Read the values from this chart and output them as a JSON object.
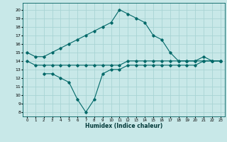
{
  "title": "",
  "xlabel": "Humidex (Indice chaleur)",
  "bg_color": "#c8e8e8",
  "grid_color": "#a8d4d4",
  "line_color": "#006868",
  "x_ticks": [
    0,
    1,
    2,
    3,
    4,
    5,
    6,
    7,
    8,
    9,
    10,
    11,
    12,
    13,
    14,
    15,
    16,
    17,
    18,
    19,
    20,
    21,
    22,
    23
  ],
  "y_ticks": [
    8,
    9,
    10,
    11,
    12,
    13,
    14,
    15,
    16,
    17,
    18,
    19,
    20
  ],
  "ylim": [
    7.5,
    20.8
  ],
  "xlim": [
    -0.5,
    23.5
  ],
  "line1_x": [
    0,
    1,
    2,
    3,
    4,
    5,
    6,
    7,
    8,
    9,
    10,
    11,
    12,
    13,
    14,
    15,
    16,
    17,
    18,
    19,
    20,
    21,
    22,
    23
  ],
  "line1_y": [
    15,
    14.5,
    14.5,
    15.0,
    15.5,
    16.0,
    16.5,
    17.0,
    17.5,
    18.0,
    18.5,
    20.0,
    19.5,
    19.0,
    18.5,
    17.0,
    16.5,
    15.0,
    14.0,
    14.0,
    14.0,
    14.5,
    14.0,
    14.0
  ],
  "line2_x": [
    0,
    1,
    2,
    3,
    4,
    5,
    6,
    7,
    8,
    9,
    10,
    11,
    12,
    13,
    14,
    15,
    16,
    17,
    18,
    19,
    20,
    21,
    22,
    23
  ],
  "line2_y": [
    14.0,
    13.5,
    13.5,
    13.5,
    13.5,
    13.5,
    13.5,
    13.5,
    13.5,
    13.5,
    13.5,
    13.5,
    14.0,
    14.0,
    14.0,
    14.0,
    14.0,
    14.0,
    14.0,
    14.0,
    14.0,
    14.0,
    14.0,
    14.0
  ],
  "line3_x": [
    2,
    3,
    4,
    5,
    6,
    7,
    8,
    9,
    10,
    11,
    12,
    13,
    14,
    15,
    16,
    17,
    18,
    19,
    20,
    21,
    22,
    23
  ],
  "line3_y": [
    12.5,
    12.5,
    12.0,
    11.5,
    9.5,
    8.0,
    9.5,
    12.5,
    13.0,
    13.0,
    13.5,
    13.5,
    13.5,
    13.5,
    13.5,
    13.5,
    13.5,
    13.5,
    13.5,
    14.0,
    14.0,
    14.0
  ]
}
